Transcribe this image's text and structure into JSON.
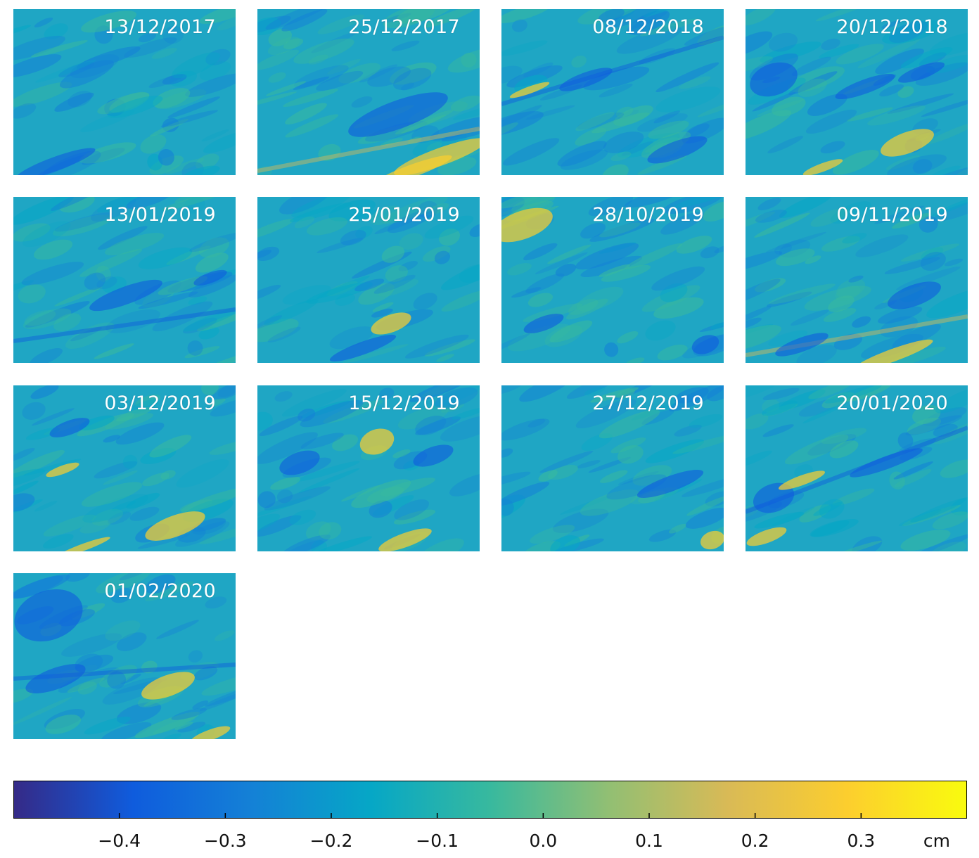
{
  "chart_data": {
    "type": "heatmap",
    "title": "",
    "colormap": "parula",
    "colors": {
      "min": "#352a87",
      "low": "#0f5cdd",
      "mid_low": "#1481d6",
      "mid": "#06a7c6",
      "mid_high": "#38b99e",
      "high": "#92bf73",
      "higher": "#d9ba56",
      "top": "#fcce2e",
      "max": "#f9fb0e"
    },
    "panels": [
      {
        "date": "13/12/2017"
      },
      {
        "date": "25/12/2017"
      },
      {
        "date": "08/12/2018"
      },
      {
        "date": "20/12/2018"
      },
      {
        "date": "13/01/2019"
      },
      {
        "date": "25/01/2019"
      },
      {
        "date": "28/10/2019"
      },
      {
        "date": "09/11/2019"
      },
      {
        "date": "03/12/2019"
      },
      {
        "date": "15/12/2019"
      },
      {
        "date": "27/12/2019"
      },
      {
        "date": "20/01/2020"
      },
      {
        "date": "01/02/2020"
      }
    ],
    "colorbar": {
      "range": [
        -0.5,
        0.4
      ],
      "ticks": [
        -0.4,
        -0.3,
        -0.2,
        -0.1,
        0.0,
        0.1,
        0.2,
        0.3
      ],
      "tick_labels": [
        "−0.4",
        "−0.3",
        "−0.2",
        "−0.1",
        "0.0",
        "0.1",
        "0.2",
        "0.3"
      ],
      "unit": "cm"
    }
  }
}
